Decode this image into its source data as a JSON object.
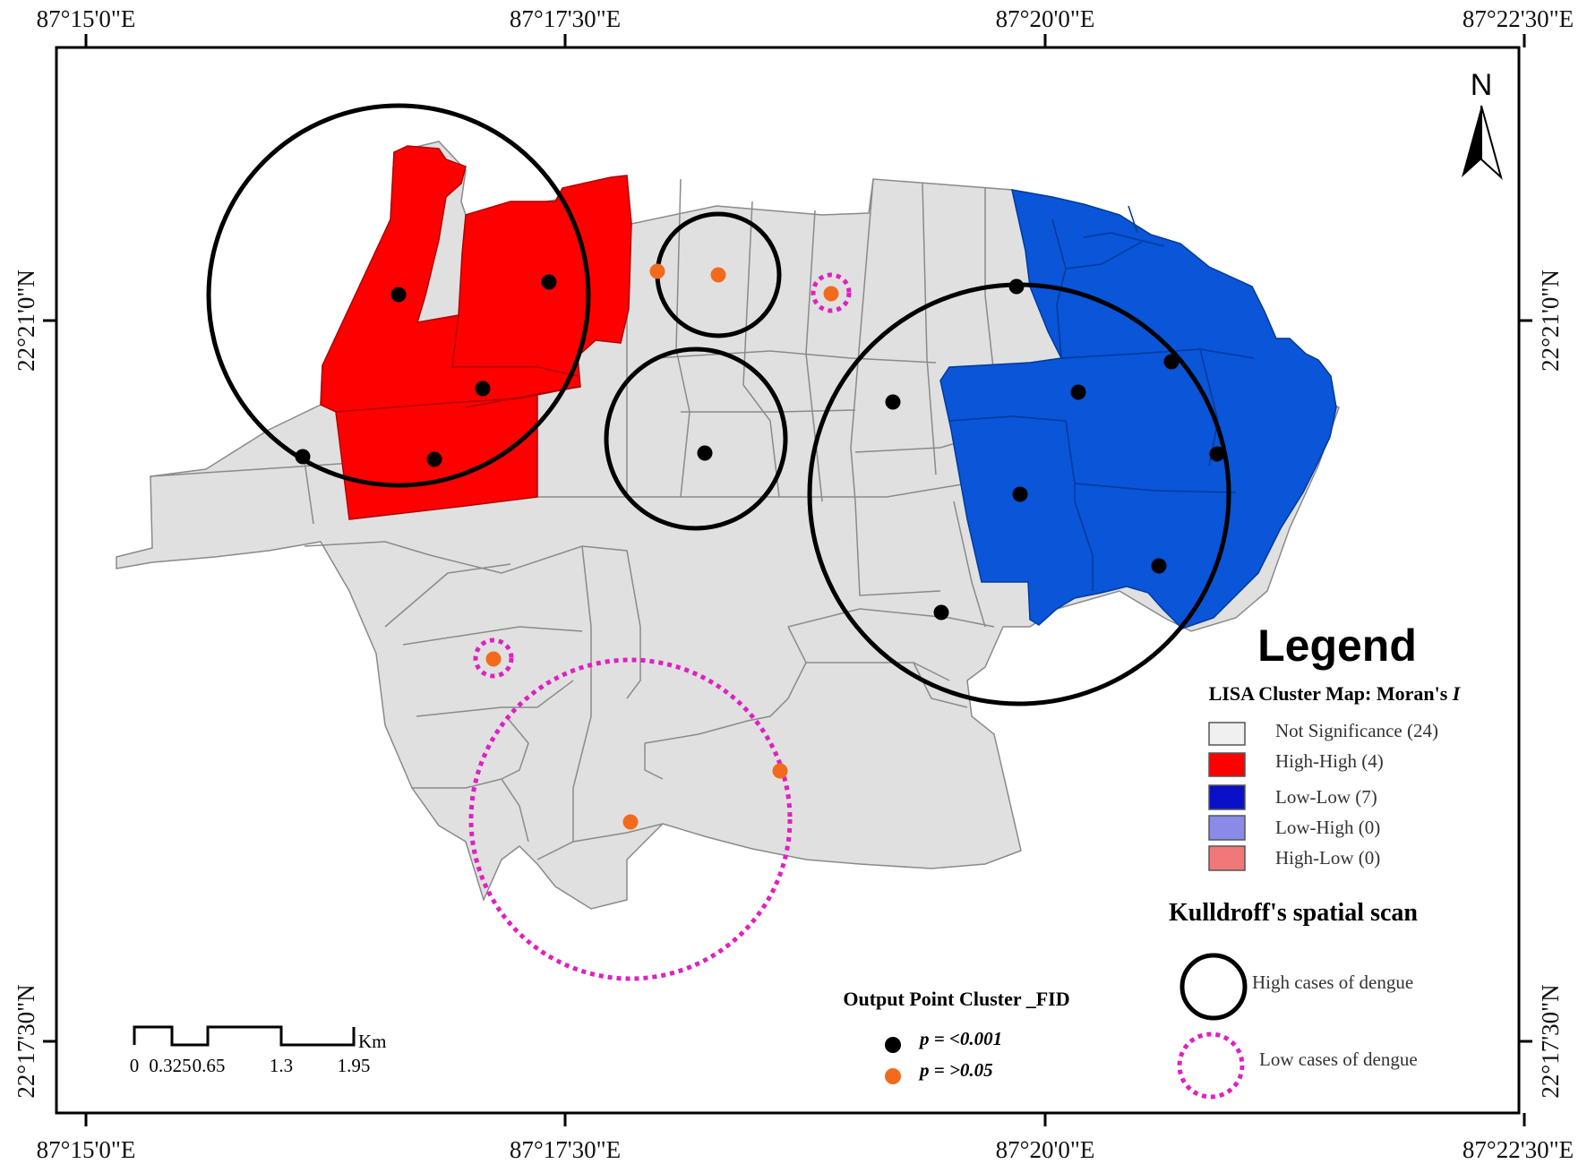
{
  "coordinates": {
    "longitude_labels": [
      "87°15'0\"E",
      "87°17'30\"E",
      "87°20'0\"E",
      "87°22'30\"E"
    ],
    "latitude_labels": [
      "22°21'0\"N",
      "22°17'30\"N"
    ]
  },
  "north_arrow": {
    "label": "N",
    "icon": "north-arrow-icon"
  },
  "legend": {
    "title": "Legend",
    "lisa_title": "LISA Cluster Map: Moran's ",
    "lisa_title_italic": "I",
    "lisa_items": [
      {
        "label": "Not Significance (24)",
        "color": "#f0f0f0"
      },
      {
        "label": "High-High (4)",
        "color": "#ff0000"
      },
      {
        "label": "Low-Low (7)",
        "color": "#0a10c8"
      },
      {
        "label": "Low-High (0)",
        "color": "#8a8ae8"
      },
      {
        "label": "High-Low (0)",
        "color": "#f07878"
      }
    ],
    "scan_title": "Kulldroff's spatial scan",
    "scan_items": [
      {
        "label": "High cases of dengue",
        "style": "solid",
        "color": "#000000"
      },
      {
        "label": "Low cases of dengue",
        "style": "dotted",
        "color": "#e020c0"
      }
    ]
  },
  "point_legend": {
    "title": "Output Point Cluster _FID",
    "items": [
      {
        "label": "p = <0.001",
        "color": "#000000"
      },
      {
        "label": "p = >0.05",
        "color": "#f26b1d"
      }
    ]
  },
  "scale_bar": {
    "unit": "Km",
    "ticks": [
      "0",
      "0.325",
      "0.65",
      "1.3",
      "1.95"
    ]
  },
  "colors": {
    "not_significant": "#e0e0e0",
    "high_high": "#ff0000",
    "low_low": "#0a55d8",
    "high_circle": "#000000",
    "low_circle": "#e020c0",
    "significant_point": "#000000",
    "nonsignificant_point": "#f26b1d"
  }
}
